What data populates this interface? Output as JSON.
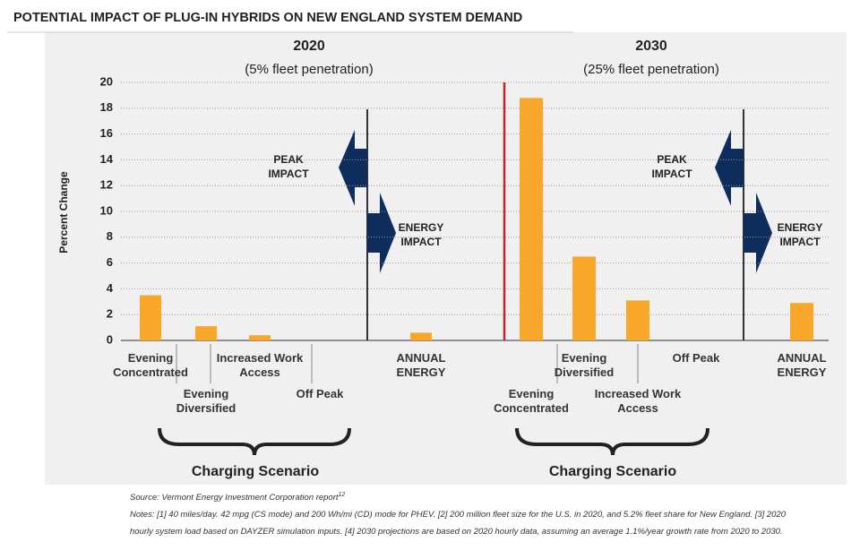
{
  "chart_data": {
    "type": "bar",
    "title": "POTENTIAL IMPACT OF PLUG-IN HYBRIDS ON NEW ENGLAND SYSTEM DEMAND",
    "y_label": "Percent Change",
    "ylim": [
      0,
      20
    ],
    "yticks": [
      0,
      2,
      4,
      6,
      8,
      10,
      12,
      14,
      16,
      18,
      20
    ],
    "grid": true,
    "color": "#f9a72b",
    "panels": [
      {
        "title": "2020",
        "subtitle": "(5% fleet penetration)",
        "categories": [
          "Evening Concentrated",
          "Evening Diversified",
          "Increased Work Access",
          "Off Peak",
          "ANNUAL ENERGY"
        ],
        "values": [
          3.5,
          1.1,
          0.4,
          0,
          0.6
        ],
        "annotations": [
          "PEAK IMPACT",
          "ENERGY IMPACT"
        ],
        "group_label": "Charging Scenario"
      },
      {
        "title": "2030",
        "subtitle": "(25% fleet penetration)",
        "categories": [
          "Evening Concentrated",
          "Evening Diversified",
          "Increased Work Access",
          "Off Peak",
          "ANNUAL ENERGY"
        ],
        "values": [
          18.8,
          6.5,
          3.1,
          0,
          2.9
        ],
        "annotations": [
          "PEAK IMPACT",
          "ENERGY IMPACT"
        ],
        "group_label": "Charging Scenario"
      }
    ],
    "source": "Source: Vermont Energy Investment Corporation report",
    "source_ref": "12",
    "notes": "Notes: [1] 40 miles/day. 42 mpg (CS mode) and 200 Wh/mi (CD) mode for PHEV. [2] 200 million fleet size for the U.S. in 2020, and 5.2% fleet share for New England. [3] 2020 hourly system load based on DAYZER simulation inputs. [4] 2030 projections are based on 2020 hourly data, assuming an average 1.1%/year growth rate from 2020 to 2030."
  }
}
